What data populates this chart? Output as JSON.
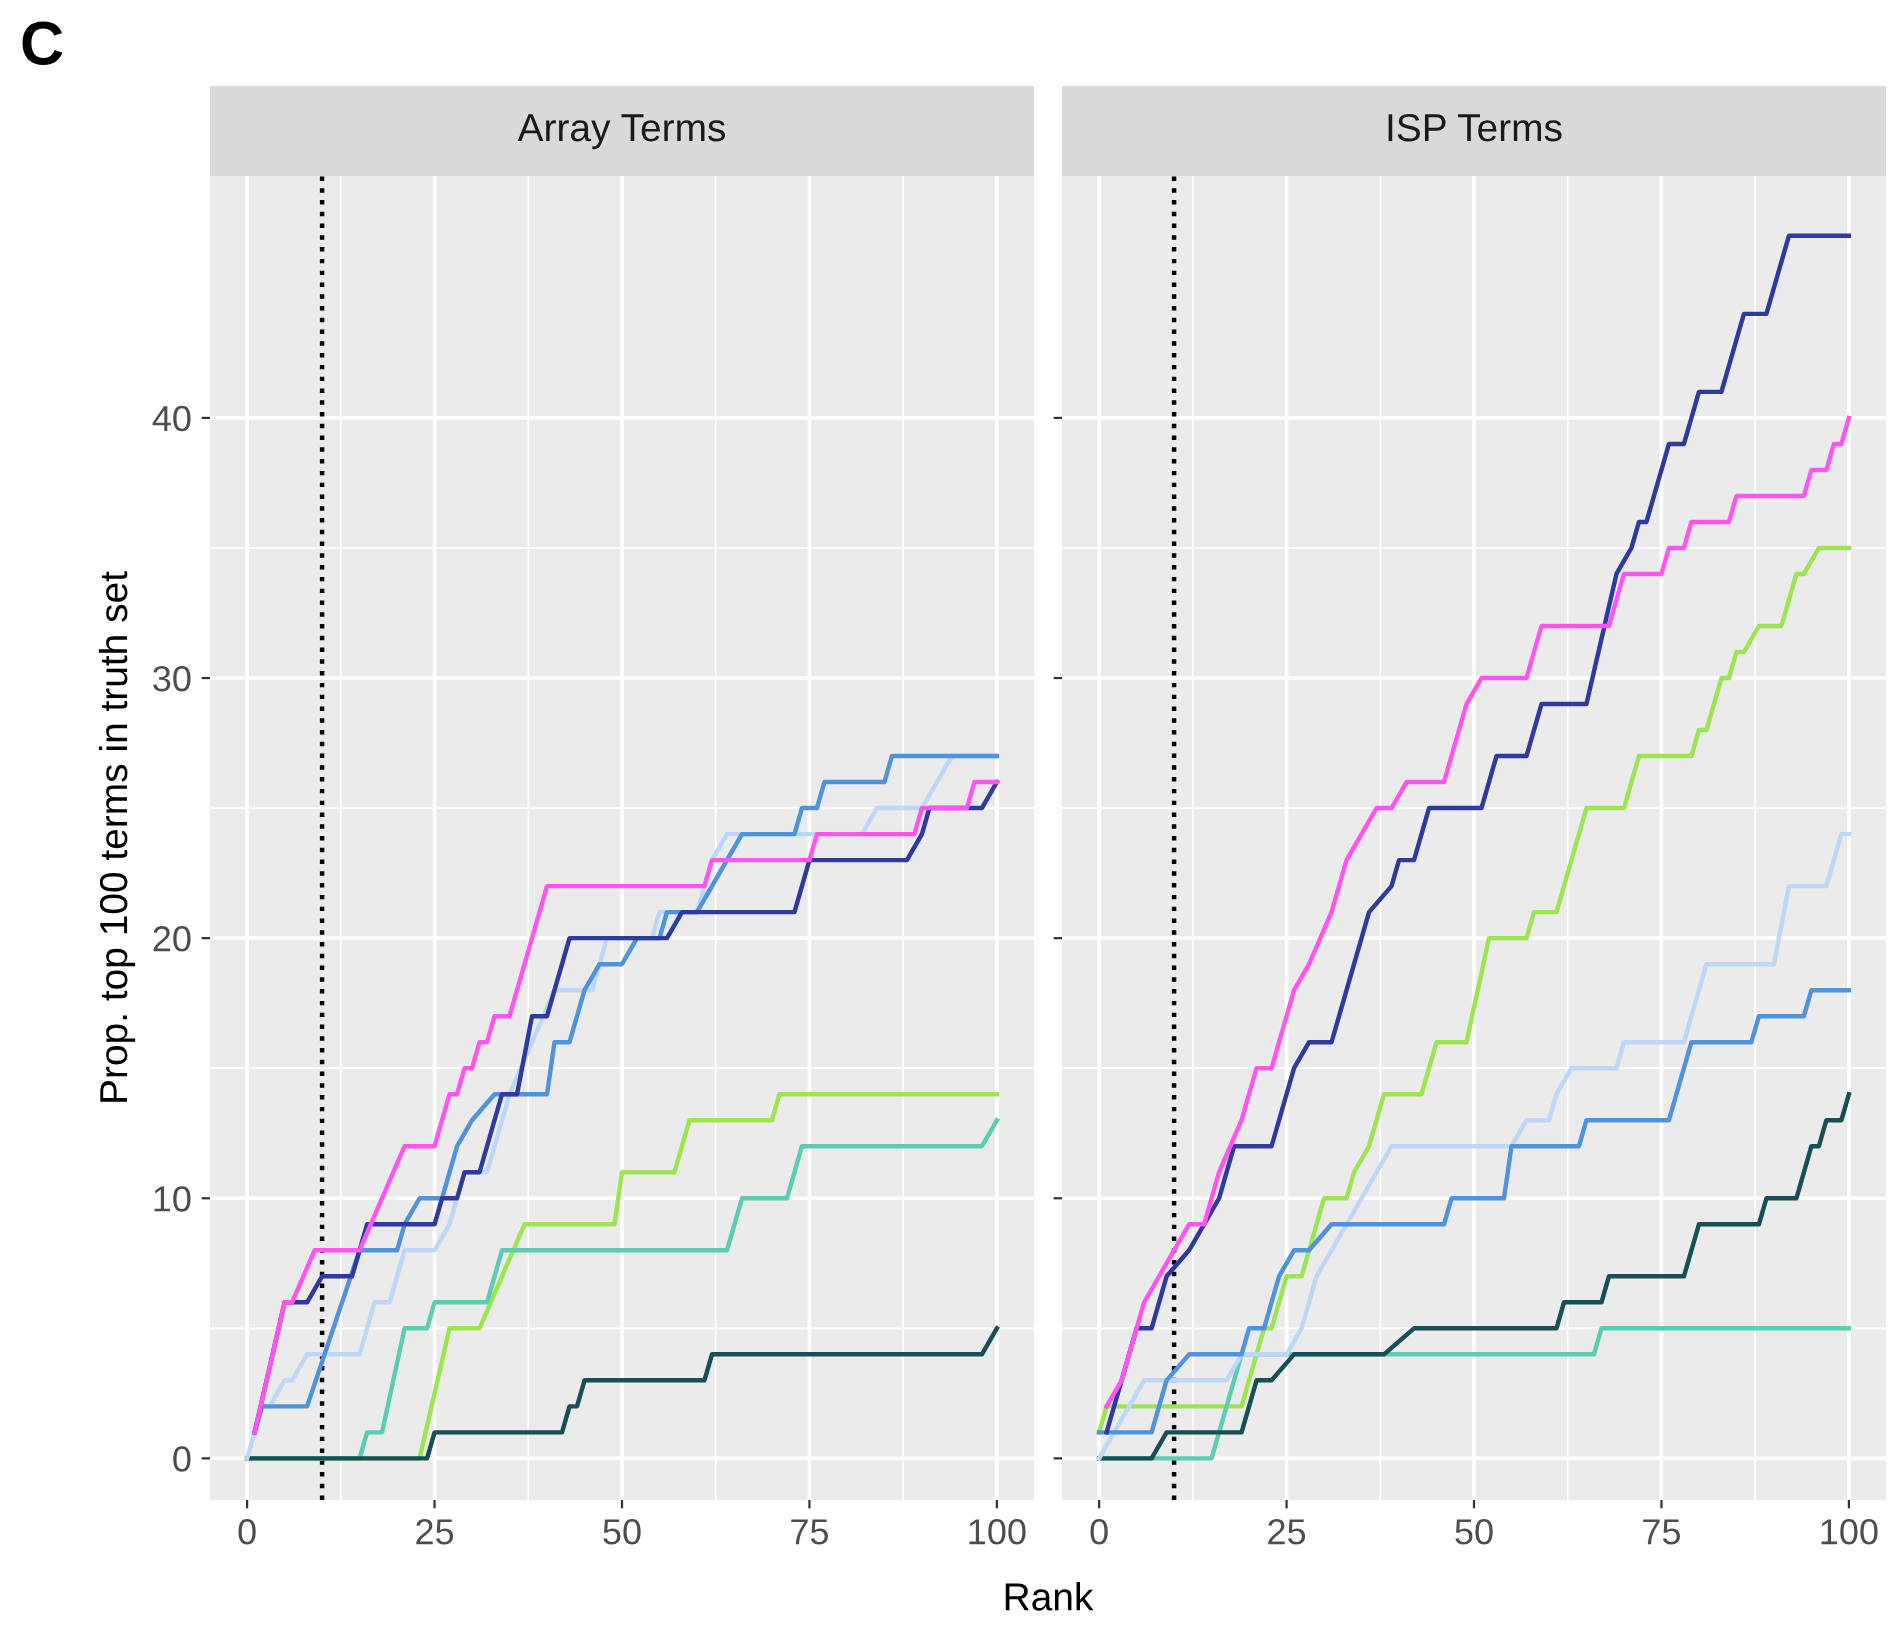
{
  "chart_data": [
    {
      "type": "line",
      "title": "Array Terms",
      "xlabel": "Rank",
      "ylabel": "Prop. top 100 terms in truth set",
      "annotations": [
        "C"
      ],
      "xlim": [
        -4.95,
        104.95
      ],
      "ylim": [
        -1.6,
        49.3
      ],
      "xticks": [
        0,
        25,
        50,
        75,
        100
      ],
      "yticks": [
        0,
        10,
        20,
        30,
        40
      ],
      "grid": true,
      "legend": false,
      "marker": "none",
      "line_style": "solid",
      "ref_lines": [
        {
          "axis": "x",
          "value": 10,
          "color": "#000000",
          "line_style": "dotted"
        }
      ],
      "series": [
        {
          "color": "#9be550",
          "x": [
            0,
            23,
            27,
            31,
            37,
            49,
            50,
            57,
            58,
            59,
            70,
            71,
            100
          ],
          "values": [
            0,
            0,
            5,
            5,
            9,
            9,
            11,
            11,
            12,
            13,
            13,
            14,
            14
          ]
        },
        {
          "color": "#5ccdb2",
          "x": [
            0,
            15,
            16,
            18,
            21,
            24,
            25,
            32,
            34,
            64,
            65,
            66,
            72,
            74,
            98,
            100
          ],
          "values": [
            0,
            0,
            1,
            1,
            5,
            5,
            6,
            6,
            8,
            8,
            9,
            10,
            10,
            12,
            12,
            13
          ]
        },
        {
          "color": "#174f57",
          "x": [
            0,
            24,
            25,
            42,
            43,
            44,
            45,
            61,
            62,
            98,
            100
          ],
          "values": [
            0,
            0,
            1,
            1,
            2,
            2,
            3,
            3,
            4,
            4,
            5
          ]
        },
        {
          "color": "#bcd7f8",
          "x": [
            0,
            2,
            3,
            5,
            6,
            8,
            15,
            17,
            19,
            21,
            25,
            27,
            29,
            32,
            35,
            38,
            41,
            46,
            48,
            54,
            55,
            60,
            61,
            62,
            64,
            82,
            84,
            90,
            92,
            94,
            100
          ],
          "values": [
            0,
            2,
            2,
            3,
            3,
            4,
            4,
            6,
            6,
            8,
            8,
            9,
            11,
            11,
            14,
            16,
            18,
            18,
            20,
            20,
            21,
            21,
            22,
            23,
            24,
            24,
            25,
            25,
            26,
            27,
            27
          ]
        },
        {
          "color": "#4f94db",
          "x": [
            1,
            2,
            8,
            15,
            20,
            21,
            23,
            26,
            28,
            30,
            33,
            40,
            41,
            43,
            45,
            47,
            50,
            52,
            55,
            56,
            60,
            62,
            64,
            66,
            73,
            74,
            76,
            77,
            85,
            86,
            100
          ],
          "values": [
            1,
            2,
            2,
            8,
            8,
            9,
            10,
            10,
            12,
            13,
            14,
            14,
            16,
            16,
            18,
            19,
            19,
            20,
            20,
            21,
            21,
            22,
            23,
            24,
            24,
            25,
            25,
            26,
            26,
            27,
            27
          ]
        },
        {
          "color": "#2e3a9e",
          "x": [
            1,
            5,
            8,
            10,
            14,
            16,
            25,
            26,
            28,
            29,
            31,
            34,
            36,
            38,
            40,
            43,
            56,
            58,
            73,
            74,
            75,
            88,
            90,
            91,
            98,
            100
          ],
          "values": [
            1,
            6,
            6,
            7,
            7,
            9,
            9,
            10,
            10,
            11,
            11,
            14,
            14,
            17,
            17,
            20,
            20,
            21,
            21,
            22,
            23,
            23,
            24,
            25,
            25,
            26
          ]
        },
        {
          "color": "#ff55ee",
          "x": [
            1,
            5,
            6,
            9,
            15,
            21,
            25,
            27,
            28,
            29,
            30,
            31,
            32,
            33,
            35,
            40,
            61,
            62,
            75,
            76,
            89,
            90,
            96,
            97,
            100
          ],
          "values": [
            1,
            6,
            6,
            8,
            8,
            12,
            12,
            14,
            14,
            15,
            15,
            16,
            16,
            17,
            17,
            22,
            22,
            23,
            23,
            24,
            24,
            25,
            25,
            26,
            26
          ]
        }
      ]
    },
    {
      "type": "line",
      "title": "ISP Terms",
      "xlim": [
        -4.95,
        104.95
      ],
      "ylim": [
        -1.6,
        49.3
      ],
      "xticks": [
        0,
        25,
        50,
        75,
        100
      ],
      "yticks": [
        0,
        10,
        20,
        30,
        40
      ],
      "tick_labels": "x",
      "grid": true,
      "legend": false,
      "marker": "none",
      "line_style": "solid",
      "ref_lines": [
        {
          "axis": "x",
          "value": 10,
          "color": "#000000",
          "line_style": "dotted"
        }
      ],
      "series": [
        {
          "color": "#9be550",
          "x": [
            0,
            1,
            19,
            22,
            23,
            25,
            27,
            28,
            29,
            30,
            33,
            34,
            36,
            38,
            43,
            44,
            45,
            49,
            52,
            57,
            58,
            61,
            65,
            70,
            71,
            72,
            79,
            80,
            81,
            82,
            83,
            84,
            85,
            86,
            88,
            91,
            93,
            94,
            96,
            100
          ],
          "values": [
            1,
            2,
            2,
            5,
            5,
            7,
            7,
            8,
            9,
            10,
            10,
            11,
            12,
            14,
            14,
            15,
            16,
            16,
            20,
            20,
            21,
            21,
            25,
            25,
            26,
            27,
            27,
            28,
            28,
            29,
            30,
            30,
            31,
            31,
            32,
            32,
            34,
            34,
            35,
            35
          ]
        },
        {
          "color": "#5ccdb2",
          "x": [
            0,
            15,
            19,
            66,
            67,
            100
          ],
          "values": [
            0,
            0,
            4,
            4,
            5,
            5
          ]
        },
        {
          "color": "#174f57",
          "x": [
            0,
            7,
            9,
            19,
            21,
            23,
            26,
            38,
            42,
            61,
            62,
            67,
            68,
            78,
            80,
            88,
            89,
            93,
            95,
            96,
            97,
            99,
            100
          ],
          "values": [
            0,
            0,
            1,
            1,
            3,
            3,
            4,
            4,
            5,
            5,
            6,
            6,
            7,
            7,
            9,
            9,
            10,
            10,
            12,
            12,
            13,
            13,
            14
          ]
        },
        {
          "color": "#bcd7f8",
          "x": [
            0,
            2,
            6,
            17,
            19,
            25,
            27,
            29,
            31,
            33,
            35,
            37,
            39,
            55,
            57,
            60,
            61,
            63,
            69,
            70,
            78,
            80,
            81,
            90,
            92,
            97,
            99,
            100
          ],
          "values": [
            0,
            1,
            3,
            3,
            4,
            4,
            5,
            7,
            8,
            9,
            10,
            11,
            12,
            12,
            13,
            13,
            14,
            15,
            15,
            16,
            16,
            18,
            19,
            19,
            22,
            22,
            24,
            24
          ]
        },
        {
          "color": "#4f94db",
          "x": [
            0,
            7,
            9,
            12,
            19,
            20,
            22,
            24,
            26,
            28,
            31,
            46,
            47,
            54,
            55,
            64,
            65,
            76,
            79,
            87,
            88,
            94,
            95,
            100
          ],
          "values": [
            1,
            1,
            3,
            4,
            4,
            5,
            5,
            7,
            8,
            8,
            9,
            9,
            10,
            10,
            12,
            12,
            13,
            13,
            16,
            16,
            17,
            17,
            18,
            18
          ]
        },
        {
          "color": "#2e3a9e",
          "x": [
            1,
            3,
            5,
            7,
            9,
            12,
            14,
            16,
            18,
            23,
            26,
            28,
            31,
            34,
            36,
            39,
            40,
            42,
            44,
            51,
            53,
            57,
            59,
            65,
            69,
            71,
            72,
            73,
            76,
            78,
            80,
            83,
            86,
            89,
            92,
            100
          ],
          "values": [
            1,
            3,
            5,
            5,
            7,
            8,
            9,
            10,
            12,
            12,
            15,
            16,
            16,
            19,
            21,
            22,
            23,
            23,
            25,
            25,
            27,
            27,
            29,
            29,
            34,
            35,
            36,
            36,
            39,
            39,
            41,
            41,
            44,
            44,
            47,
            47
          ]
        },
        {
          "color": "#ff55ee",
          "x": [
            1,
            3,
            6,
            8,
            10,
            12,
            14,
            16,
            19,
            21,
            23,
            26,
            28,
            31,
            33,
            35,
            37,
            39,
            41,
            46,
            49,
            51,
            57,
            59,
            68,
            70,
            75,
            76,
            78,
            79,
            84,
            85,
            94,
            95,
            97,
            98,
            99,
            100
          ],
          "values": [
            2,
            3,
            6,
            7,
            8,
            9,
            9,
            11,
            13,
            15,
            15,
            18,
            19,
            21,
            23,
            24,
            25,
            25,
            26,
            26,
            29,
            30,
            30,
            32,
            32,
            34,
            34,
            35,
            35,
            36,
            36,
            37,
            37,
            38,
            38,
            39,
            39,
            40
          ]
        }
      ]
    }
  ]
}
